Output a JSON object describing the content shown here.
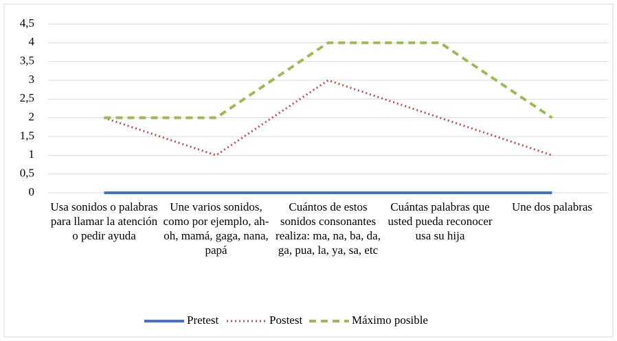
{
  "chart_data": {
    "type": "line",
    "categories": [
      "Usa sonidos o palabras para llamar la atención o pedir ayuda",
      "Une varios sonidos, como por ejemplo, ah-oh, mamá, gaga, nana, papá",
      "Cuántos de estos sonidos consonantes realiza: ma, na, ba, da, ga, pua, la, ya, sa, etc",
      "Cuántas palabras que usted pueda reconocer usa su hija",
      "Une dos palabras"
    ],
    "series": [
      {
        "name": "Pretest",
        "color": "#4472c4",
        "dash": "solid",
        "values": [
          0,
          0,
          0,
          0,
          0
        ]
      },
      {
        "name": "Postest",
        "color": "#c0504d",
        "dash": "dotted",
        "values": [
          2,
          1,
          3,
          2,
          1
        ]
      },
      {
        "name": "Máximo posible",
        "color": "#9bbb59",
        "dash": "dashed",
        "values": [
          2,
          2,
          4,
          4,
          2
        ]
      }
    ],
    "ylim": [
      0,
      4.5
    ],
    "yticks": [
      0,
      {
        "value": 0.5,
        "label": "0,5"
      },
      1,
      {
        "value": 1.5,
        "label": "1,5"
      },
      2,
      {
        "value": 2.5,
        "label": "2,5"
      },
      3,
      {
        "value": 3.5,
        "label": "3,5"
      },
      4,
      {
        "value": 4.5,
        "label": "4,5"
      }
    ],
    "grid": true,
    "legend": "bottom"
  }
}
